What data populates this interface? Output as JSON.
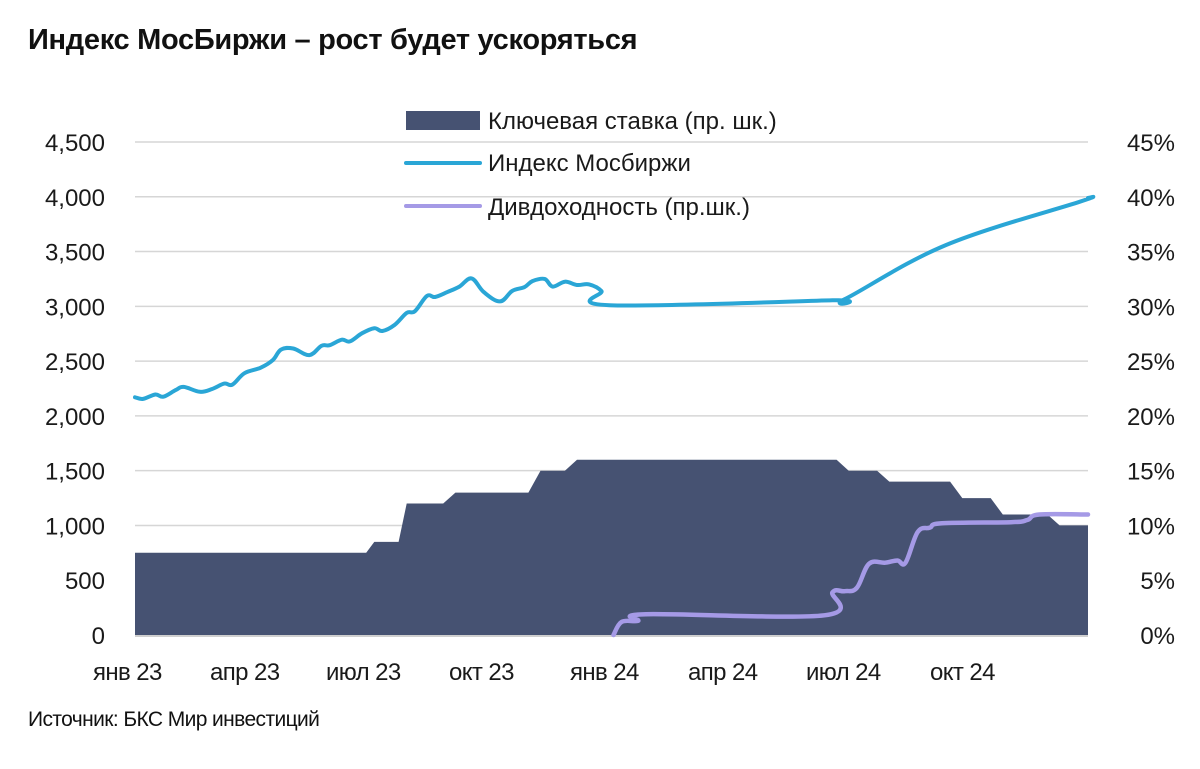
{
  "title": "Индекс МосБиржи – рост будет ускоряться",
  "source": "Источник: БКС Мир инвестиций",
  "colors": {
    "key_rate": "#465272",
    "moex_index": "#2aa6d6",
    "div_yield": "#a59ae6",
    "grid": "#d6d6d6"
  },
  "legend": [
    {
      "label": "Ключевая ставка (пр. шк.)",
      "type": "area"
    },
    {
      "label": "Индекс Мосбиржи",
      "type": "line"
    },
    {
      "label": "Дивдоходность (пр.шк.)",
      "type": "line"
    }
  ],
  "chart_data": {
    "type": "line",
    "title": "Индекс МосБиржи – рост будет ускоряться",
    "xlabel": "",
    "ylabel_left": "Индекс Мосбиржи",
    "ylabel_right": "%",
    "ylim_left": [
      0,
      4500
    ],
    "ylim_right": [
      0,
      45
    ],
    "yticks_left": [
      "0",
      "500",
      "1,000",
      "1,500",
      "2,000",
      "2,500",
      "3,000",
      "3,500",
      "4,000",
      "4,500"
    ],
    "yticks_right": [
      "0%",
      "5%",
      "10%",
      "15%",
      "20%",
      "25%",
      "30%",
      "35%",
      "40%",
      "45%"
    ],
    "xticks": [
      "янв 23",
      "апр 23",
      "июл 23",
      "окт 23",
      "янв 24",
      "апр 24",
      "июл 24",
      "окт 24"
    ],
    "x_range_months": [
      0,
      23.5
    ],
    "grid": true,
    "legend_position": "top-center",
    "series": [
      {
        "name": "Ключевая ставка (пр. шк.)",
        "type": "area-step",
        "axis": "right",
        "points": [
          [
            0,
            7.5
          ],
          [
            5.7,
            7.5
          ],
          [
            5.9,
            8.5
          ],
          [
            6.5,
            8.5
          ],
          [
            6.7,
            12
          ],
          [
            7.6,
            12
          ],
          [
            7.9,
            13
          ],
          [
            9.7,
            13
          ],
          [
            10.0,
            15
          ],
          [
            10.6,
            15
          ],
          [
            10.9,
            16
          ],
          [
            17.3,
            16
          ],
          [
            17.6,
            15
          ],
          [
            18.3,
            15
          ],
          [
            18.6,
            14
          ],
          [
            20.1,
            14
          ],
          [
            20.4,
            12.5
          ],
          [
            21.1,
            12.5
          ],
          [
            21.4,
            11
          ],
          [
            22.5,
            11
          ],
          [
            22.8,
            10
          ],
          [
            23.5,
            10
          ]
        ]
      },
      {
        "name": "Индекс Мосбиржи",
        "type": "line",
        "axis": "left",
        "points": [
          [
            0,
            2170
          ],
          [
            0.2,
            2155
          ],
          [
            0.5,
            2195
          ],
          [
            0.7,
            2175
          ],
          [
            1.0,
            2235
          ],
          [
            1.2,
            2265
          ],
          [
            1.6,
            2220
          ],
          [
            1.9,
            2245
          ],
          [
            2.2,
            2295
          ],
          [
            2.4,
            2285
          ],
          [
            2.7,
            2390
          ],
          [
            3.1,
            2440
          ],
          [
            3.4,
            2510
          ],
          [
            3.6,
            2605
          ],
          [
            3.9,
            2615
          ],
          [
            4.3,
            2555
          ],
          [
            4.6,
            2640
          ],
          [
            4.8,
            2645
          ],
          [
            5.1,
            2695
          ],
          [
            5.3,
            2680
          ],
          [
            5.6,
            2755
          ],
          [
            5.9,
            2800
          ],
          [
            6.1,
            2775
          ],
          [
            6.4,
            2830
          ],
          [
            6.7,
            2940
          ],
          [
            6.9,
            2955
          ],
          [
            7.2,
            3095
          ],
          [
            7.4,
            3085
          ],
          [
            7.7,
            3130
          ],
          [
            8.0,
            3180
          ],
          [
            8.3,
            3255
          ],
          [
            8.6,
            3130
          ],
          [
            9.0,
            3045
          ],
          [
            9.3,
            3140
          ],
          [
            9.6,
            3175
          ],
          [
            9.8,
            3230
          ],
          [
            10.1,
            3250
          ],
          [
            10.3,
            3180
          ],
          [
            10.6,
            3225
          ],
          [
            10.9,
            3195
          ],
          [
            11.2,
            3200
          ],
          [
            11.5,
            3140
          ],
          [
            11.7,
            3010
          ],
          [
            17.2,
            3055
          ],
          [
            17.5,
            3065
          ],
          [
            20.0,
            3560
          ],
          [
            23.3,
            3955
          ],
          [
            23.5,
            3990
          ]
        ]
      },
      {
        "name": "Дивдоходность (пр.шк.)",
        "type": "line",
        "axis": "right",
        "points": [
          [
            11.8,
            0
          ],
          [
            12.0,
            1.2
          ],
          [
            12.4,
            1.3
          ],
          [
            12.6,
            1.9
          ],
          [
            17.0,
            1.8
          ],
          [
            17.2,
            3.9
          ],
          [
            17.5,
            4.0
          ],
          [
            17.8,
            4.3
          ],
          [
            18.1,
            6.5
          ],
          [
            18.5,
            6.6
          ],
          [
            18.8,
            6.8
          ],
          [
            19.0,
            6.6
          ],
          [
            19.3,
            9.4
          ],
          [
            19.6,
            9.8
          ],
          [
            19.9,
            10.2
          ],
          [
            21.6,
            10.3
          ],
          [
            22.0,
            10.5
          ],
          [
            22.3,
            11.0
          ],
          [
            23.5,
            11.0
          ]
        ]
      }
    ]
  }
}
